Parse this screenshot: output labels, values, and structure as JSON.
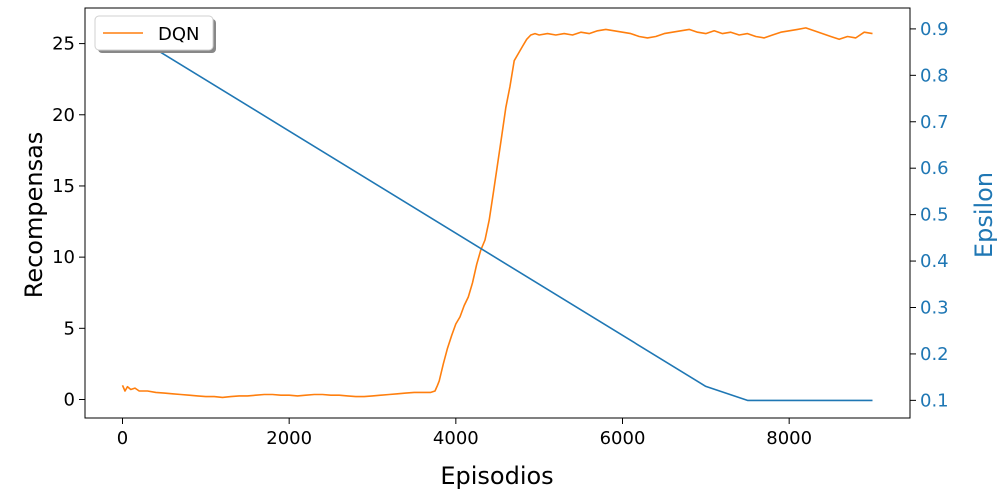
{
  "chart_data": {
    "type": "line",
    "title": "",
    "xlabel": "Episodios",
    "ylabel_left": "Recompensas",
    "ylabel_right": "Epsilon",
    "xlim": [
      -450,
      9450
    ],
    "ylim_left": [
      -1.3,
      27.5
    ],
    "ylim_right": [
      0.062,
      0.945
    ],
    "xticks": [
      0,
      2000,
      4000,
      6000,
      8000
    ],
    "xtick_labels": [
      "0",
      "2000",
      "4000",
      "6000",
      "8000"
    ],
    "yticks_left": [
      0,
      5,
      10,
      15,
      20,
      25
    ],
    "ytick_labels_left": [
      "0",
      "5",
      "10",
      "15",
      "20",
      "25"
    ],
    "yticks_right": [
      0.1,
      0.2,
      0.3,
      0.4,
      0.5,
      0.6,
      0.7,
      0.8,
      0.9
    ],
    "ytick_labels_right": [
      "0.1",
      "0.2",
      "0.3",
      "0.4",
      "0.5",
      "0.6",
      "0.7",
      "0.8",
      "0.9"
    ],
    "grid": false,
    "legend": {
      "position": "top-left",
      "entries": [
        "DQN"
      ]
    },
    "colors": {
      "dqn": "#ff7f0e",
      "epsilon": "#1f77b4"
    },
    "series": [
      {
        "name": "DQN",
        "axis": "left",
        "x": [
          0,
          30,
          60,
          100,
          150,
          200,
          300,
          400,
          500,
          600,
          700,
          800,
          900,
          1000,
          1100,
          1200,
          1300,
          1400,
          1500,
          1600,
          1700,
          1800,
          1900,
          2000,
          2100,
          2200,
          2300,
          2400,
          2500,
          2600,
          2700,
          2800,
          2900,
          3000,
          3100,
          3200,
          3300,
          3400,
          3500,
          3600,
          3700,
          3750,
          3780,
          3800,
          3850,
          3900,
          3950,
          4000,
          4050,
          4100,
          4150,
          4200,
          4250,
          4300,
          4350,
          4400,
          4450,
          4500,
          4550,
          4600,
          4650,
          4700,
          4750,
          4800,
          4850,
          4900,
          4950,
          5000,
          5100,
          5200,
          5300,
          5400,
          5500,
          5600,
          5700,
          5800,
          5900,
          6000,
          6100,
          6200,
          6300,
          6400,
          6500,
          6600,
          6700,
          6800,
          6900,
          7000,
          7100,
          7200,
          7300,
          7400,
          7500,
          7600,
          7700,
          7800,
          7900,
          8000,
          8100,
          8200,
          8300,
          8400,
          8500,
          8600,
          8700,
          8800,
          8900,
          9000
        ],
        "values": [
          1.0,
          0.6,
          0.9,
          0.7,
          0.8,
          0.6,
          0.6,
          0.5,
          0.45,
          0.4,
          0.35,
          0.3,
          0.25,
          0.2,
          0.2,
          0.15,
          0.2,
          0.25,
          0.25,
          0.3,
          0.35,
          0.35,
          0.3,
          0.3,
          0.25,
          0.3,
          0.35,
          0.35,
          0.3,
          0.3,
          0.25,
          0.2,
          0.2,
          0.25,
          0.3,
          0.35,
          0.4,
          0.45,
          0.5,
          0.5,
          0.5,
          0.6,
          1.0,
          1.3,
          2.5,
          3.6,
          4.5,
          5.3,
          5.8,
          6.6,
          7.2,
          8.2,
          9.5,
          10.5,
          11.2,
          12.6,
          14.5,
          16.5,
          18.5,
          20.5,
          22.0,
          23.8,
          24.3,
          24.8,
          25.3,
          25.6,
          25.7,
          25.6,
          25.7,
          25.6,
          25.7,
          25.6,
          25.8,
          25.7,
          25.9,
          26.0,
          25.9,
          25.8,
          25.7,
          25.5,
          25.4,
          25.5,
          25.7,
          25.8,
          25.9,
          26.0,
          25.8,
          25.7,
          25.9,
          25.7,
          25.8,
          25.6,
          25.7,
          25.5,
          25.4,
          25.6,
          25.8,
          25.9,
          26.0,
          26.1,
          25.9,
          25.7,
          25.5,
          25.3,
          25.5,
          25.4,
          25.8,
          25.7
        ]
      },
      {
        "name": "",
        "axis": "right",
        "x": [
          0,
          7000,
          7500,
          9000
        ],
        "values": [
          0.9,
          0.13,
          0.1,
          0.1
        ]
      }
    ]
  }
}
